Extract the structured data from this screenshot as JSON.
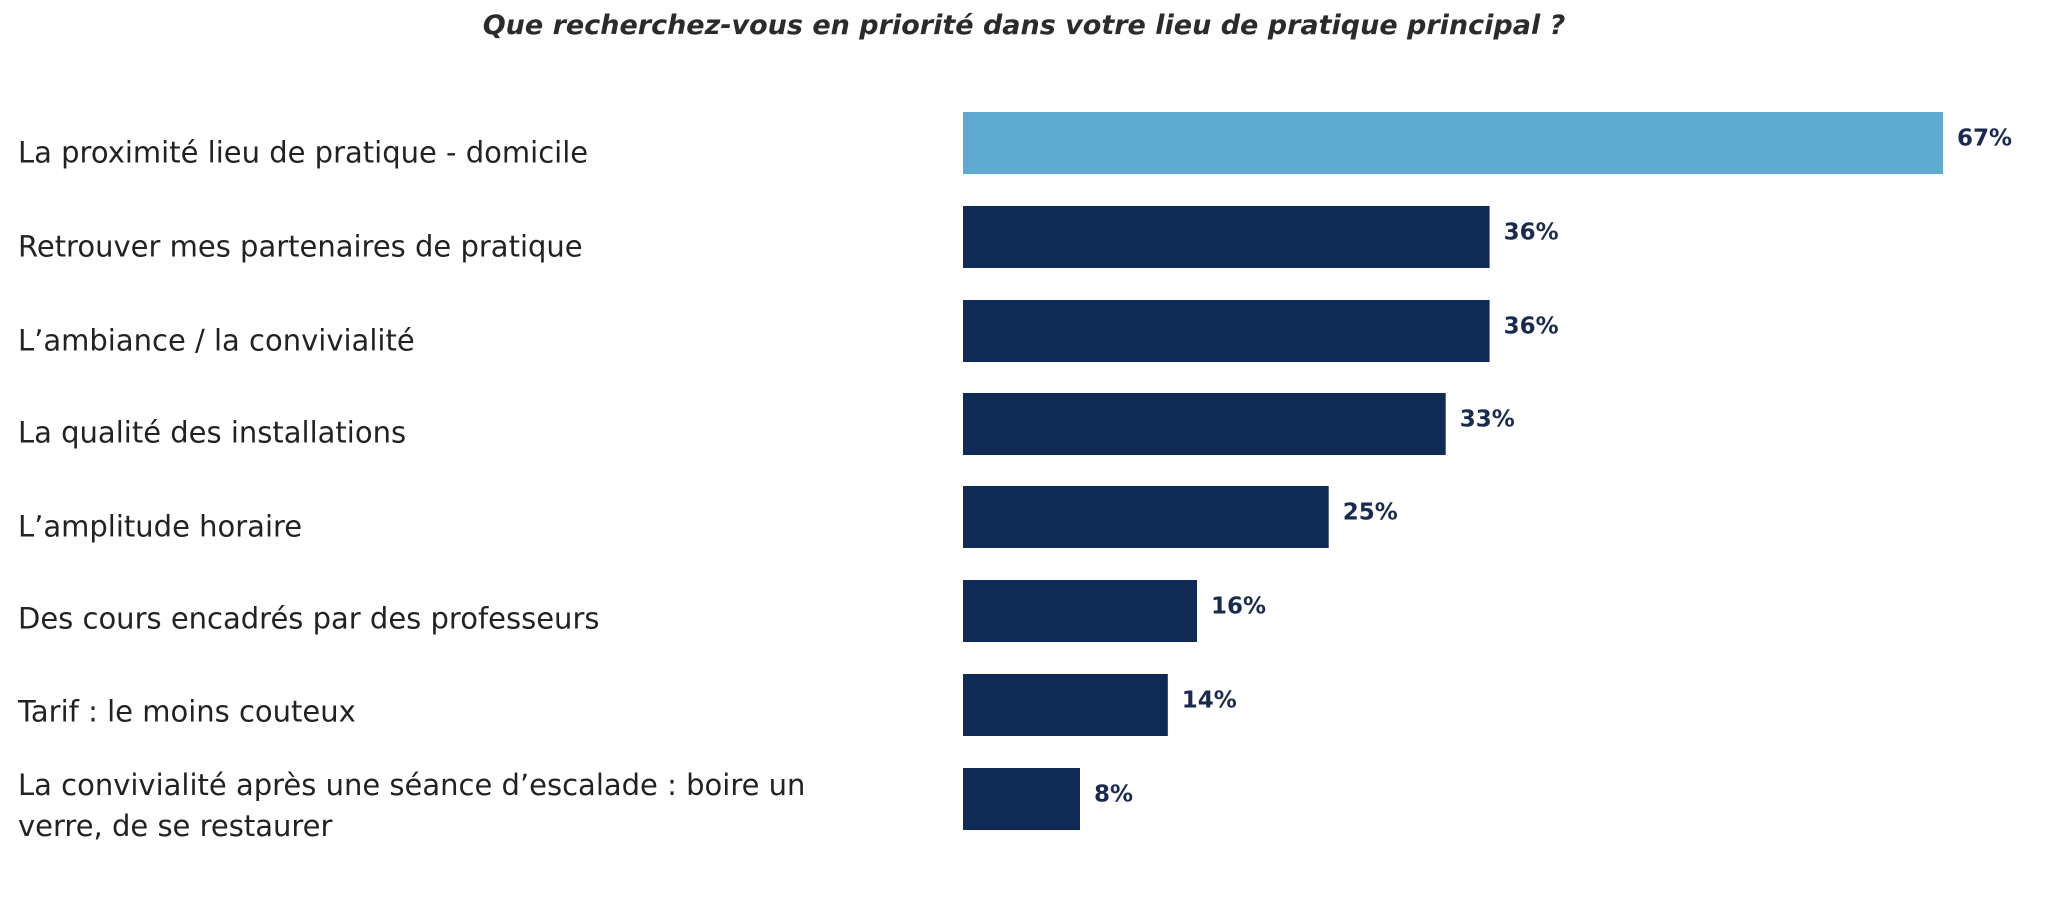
{
  "chart_data": {
    "type": "bar",
    "orientation": "horizontal",
    "title": "Que recherchez-vous en priorité dans votre lieu de pratique principal ?",
    "categories": [
      "La proximité lieu de pratique - domicile",
      "Retrouver mes partenaires de pratique",
      "L’ambiance / la convivialité",
      "La qualité des installations",
      "L’amplitude horaire",
      "Des cours encadrés par des professeurs",
      "Tarif :  le moins couteux",
      "La convivialité après une séance d’escalade : boire un verre, de se restaurer"
    ],
    "values": [
      67,
      36,
      36,
      33,
      25,
      16,
      14,
      8
    ],
    "value_labels": [
      "67%",
      "36%",
      "36%",
      "33%",
      "25%",
      "16%",
      "14%",
      "8%"
    ],
    "unit": "%",
    "xlim": [
      0,
      67
    ],
    "highlight_index": 0,
    "colors": {
      "highlight": "#5eaad1",
      "default": "#102a56",
      "value_text": "#1a2a4f"
    },
    "grid": false,
    "legend": "none"
  }
}
